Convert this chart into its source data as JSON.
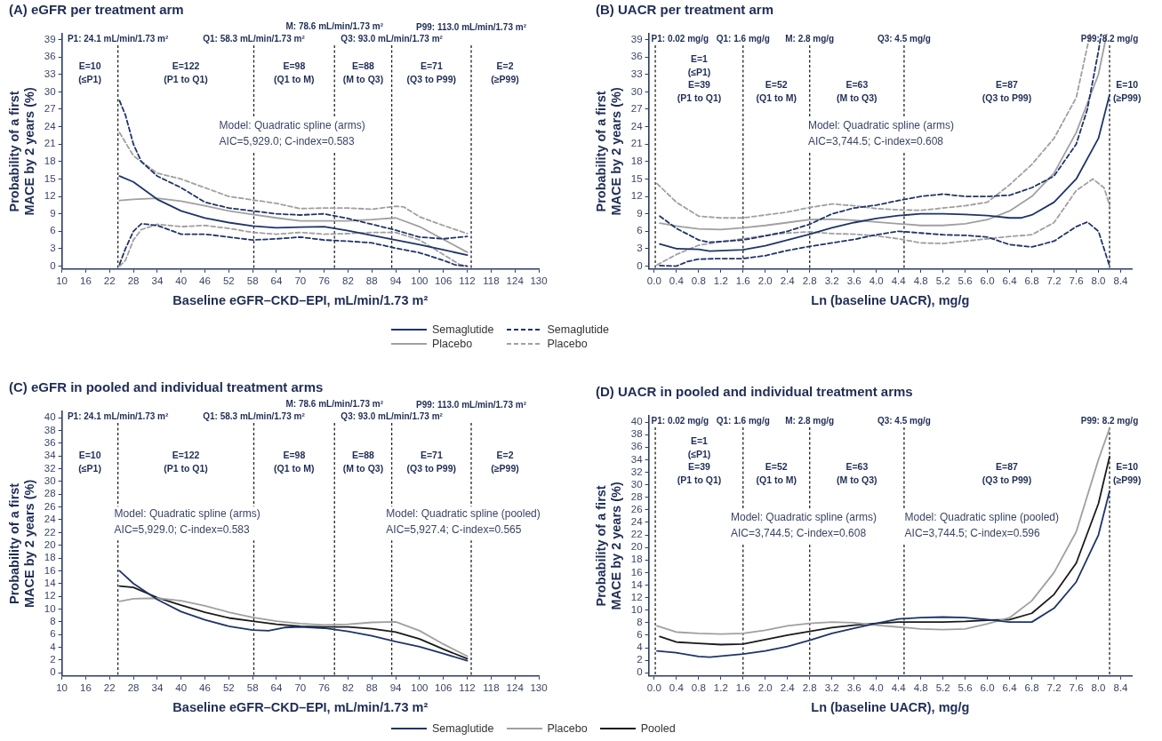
{
  "chart_data": [
    {
      "type": "line",
      "title": "(A) eGFR per treatment arm",
      "xlabel": "Baseline eGFR–CKD–EPI, mL/min/1.73 m²",
      "ylabel": "Probability of a first MACE by 2 years (%)",
      "xlim": [
        10,
        130
      ],
      "xticks": [
        10,
        16,
        22,
        28,
        34,
        40,
        46,
        52,
        58,
        64,
        70,
        76,
        82,
        88,
        94,
        100,
        106,
        112,
        118,
        124,
        130
      ],
      "ylim": [
        -0.5,
        40
      ],
      "yticks": [
        0,
        3,
        6,
        9,
        12,
        15,
        18,
        21,
        24,
        27,
        30,
        33,
        36,
        39
      ],
      "grid": false,
      "legend": "bottom",
      "series": [
        {
          "name": "Semaglutide",
          "color": "#1f3469",
          "line_style": "solid",
          "x": [
            24.5,
            28,
            34,
            40,
            46,
            52,
            58,
            64,
            70,
            76,
            82,
            88,
            94,
            100,
            106,
            112
          ],
          "values": [
            15.5,
            14.5,
            11.5,
            9.5,
            8.3,
            7.5,
            6.9,
            6.6,
            6.7,
            6.8,
            6.1,
            5.3,
            4.5,
            3.7,
            2.8,
            1.9
          ]
        },
        {
          "name": "Semaglutide",
          "color": "#1f3469",
          "line_style": "dashed",
          "x": [
            24.5,
            26,
            28,
            30,
            34,
            40,
            46,
            52,
            58,
            64,
            70,
            76,
            82,
            88,
            94,
            100,
            106,
            112
          ],
          "values": [
            28.5,
            26,
            21,
            18,
            15.5,
            13.5,
            11,
            10,
            9.5,
            9,
            8.8,
            9,
            8.2,
            7.2,
            6.2,
            5,
            4.7,
            5.1
          ]
        },
        {
          "name": "Semaglutide",
          "color": "#1f3469",
          "line_style": "dashed",
          "x": [
            24.5,
            26,
            28,
            30,
            34,
            40,
            46,
            52,
            58,
            64,
            70,
            76,
            82,
            88,
            94,
            100,
            106,
            109,
            112
          ],
          "values": [
            0.3,
            3,
            6,
            7.3,
            7,
            5.5,
            5.5,
            5,
            4.5,
            4.7,
            5,
            4.5,
            4.3,
            4,
            3.1,
            2.3,
            1,
            0.2,
            0
          ]
        },
        {
          "name": "Placebo",
          "color": "#a0a0a0",
          "line_style": "solid",
          "x": [
            24.5,
            28,
            34,
            40,
            46,
            52,
            58,
            64,
            70,
            76,
            82,
            88,
            94,
            100,
            106,
            112
          ],
          "values": [
            11.3,
            11.5,
            11.7,
            11.2,
            10.4,
            9.5,
            8.9,
            8.3,
            7.8,
            7.8,
            7.8,
            8,
            8.3,
            6.8,
            4.6,
            2.4
          ]
        },
        {
          "name": "Placebo",
          "color": "#a0a0a0",
          "line_style": "dashed",
          "x": [
            24.5,
            28,
            34,
            40,
            46,
            52,
            58,
            64,
            70,
            76,
            82,
            88,
            94,
            96,
            100,
            106,
            112
          ],
          "values": [
            23,
            19,
            16,
            15,
            13.5,
            12,
            11.4,
            10.8,
            9.9,
            10,
            10,
            9.8,
            10.3,
            10.2,
            8.5,
            7,
            5.6
          ]
        },
        {
          "name": "Placebo",
          "color": "#a0a0a0",
          "line_style": "dashed",
          "x": [
            24.5,
            26,
            28,
            30,
            34,
            40,
            46,
            52,
            58,
            64,
            70,
            76,
            82,
            88,
            94,
            100,
            106,
            110,
            112
          ],
          "values": [
            0,
            1,
            4.5,
            6.3,
            7.2,
            6.8,
            7,
            6.5,
            5.8,
            5.5,
            5.8,
            5.5,
            5.6,
            5.8,
            5.8,
            4.5,
            2,
            0.3,
            0
          ]
        }
      ],
      "ref_lines": [
        {
          "axis": "x",
          "value": 24.1,
          "label": "P1: 24.1 mL/min/1.73 m²",
          "line_style": "dashed"
        },
        {
          "axis": "x",
          "value": 58.3,
          "label": "Q1: 58.3 mL/min/1.73 m²",
          "line_style": "dashed"
        },
        {
          "axis": "x",
          "value": 78.6,
          "label": "M: 78.6 mL/min/1.73 m²",
          "line_style": "dashed"
        },
        {
          "axis": "x",
          "value": 93.0,
          "label": "Q3: 93.0 mL/min/1.73 m²",
          "line_style": "dashed"
        },
        {
          "axis": "x",
          "value": 113.0,
          "label": "P99: 113.0 mL/min/1.73 m²",
          "line_style": "dashed"
        }
      ],
      "annotations": [
        "E=10\n(≤P1)",
        "E=122\n(P1 to Q1)",
        "E=98\n(Q1 to M)",
        "E=88\n(M to Q3)",
        "E=71\n(Q3 to P99)",
        "E=2\n(≥P99)",
        "Model: Quadratic spline (arms)\nAIC=5,929.0; C-index=0.583"
      ]
    },
    {
      "type": "line",
      "title": "(B) UACR per treatment arm",
      "xlabel": "Ln (baseline UACR), mg/g",
      "ylabel": "Probability of a first MACE by 2 years (%)",
      "xlim": [
        -0.1,
        8.6
      ],
      "xticks": [
        {
          "value": 0,
          "label": "0.0"
        },
        0.4,
        0.8,
        1.2,
        1.6,
        {
          "value": 2,
          "label": "2.0"
        },
        2.4,
        2.8,
        3.2,
        3.6,
        {
          "value": 4,
          "label": "4.0"
        },
        4.4,
        4.8,
        5.2,
        5.6,
        {
          "value": 6,
          "label": "6.0"
        },
        6.4,
        6.8,
        7.2,
        7.6,
        {
          "value": 8,
          "label": "8.0"
        },
        8.4
      ],
      "ylim": [
        -0.5,
        40
      ],
      "yticks": [
        0,
        3,
        6,
        9,
        12,
        15,
        18,
        21,
        24,
        27,
        30,
        33,
        36,
        39
      ],
      "grid": false,
      "series": [
        {
          "color": "#1f3469",
          "line_style": "solid",
          "x": [
            0.1,
            0.4,
            0.8,
            1.0,
            1.6,
            2.0,
            2.4,
            2.8,
            3.2,
            3.6,
            4.0,
            4.4,
            4.8,
            5.2,
            5.6,
            6.0,
            6.4,
            6.6,
            6.8,
            7.2,
            7.6,
            8.0,
            8.2
          ],
          "values": [
            3.8,
            3.0,
            2.9,
            2.6,
            2.8,
            3.5,
            4.5,
            5.5,
            6.6,
            7.5,
            8.2,
            8.7,
            9.0,
            9.0,
            8.9,
            8.7,
            8.3,
            8.3,
            8.8,
            11,
            15,
            22,
            29.5
          ]
        },
        {
          "color": "#1f3469",
          "line_style": "dashed",
          "x": [
            0.1,
            0.4,
            0.8,
            1.0,
            1.6,
            2.0,
            2.4,
            2.8,
            3.2,
            3.6,
            4.0,
            4.4,
            4.8,
            5.2,
            5.6,
            6.0,
            6.4,
            6.8,
            7.2,
            7.6,
            7.8,
            8.0,
            8.05
          ],
          "values": [
            8.6,
            6.5,
            4.5,
            4.1,
            4.5,
            5.2,
            6.0,
            7.2,
            9.0,
            10.0,
            10.5,
            11.3,
            12.0,
            12.4,
            12.0,
            12.0,
            12.2,
            13.5,
            15.5,
            21,
            27,
            37,
            40
          ]
        },
        {
          "color": "#1f3469",
          "line_style": "dashed",
          "x": [
            0.1,
            0.4,
            0.6,
            0.8,
            1.2,
            1.6,
            2.0,
            2.4,
            2.8,
            3.2,
            3.6,
            4.0,
            4.4,
            4.8,
            5.2,
            5.6,
            6.0,
            6.4,
            6.8,
            7.2,
            7.6,
            7.8,
            8.0,
            8.2
          ],
          "values": [
            0.1,
            0,
            0.8,
            1.2,
            1.3,
            1.3,
            1.8,
            2.7,
            3.4,
            4.0,
            4.6,
            5.4,
            6.0,
            5.7,
            5.4,
            5.3,
            5.0,
            3.7,
            3.3,
            4.3,
            6.8,
            7.6,
            6.0,
            0
          ]
        },
        {
          "color": "#a0a0a0",
          "line_style": "solid",
          "x": [
            0.1,
            0.4,
            0.8,
            1.2,
            1.6,
            2.0,
            2.4,
            2.8,
            3.2,
            3.6,
            4.0,
            4.4,
            4.8,
            5.2,
            5.6,
            6.0,
            6.4,
            6.8,
            7.2,
            7.6,
            8.0,
            8.15
          ],
          "values": [
            7.4,
            6.9,
            6.4,
            6.3,
            6.6,
            7.0,
            7.5,
            8.0,
            8.1,
            7.9,
            7.6,
            7.3,
            7.0,
            7.0,
            7.3,
            8.0,
            9.5,
            12,
            16,
            23,
            33,
            40
          ]
        },
        {
          "color": "#a0a0a0",
          "line_style": "dashed",
          "x": [
            0.05,
            0.4,
            0.8,
            1.2,
            1.6,
            2.0,
            2.4,
            2.8,
            3.2,
            3.6,
            4.0,
            4.4,
            4.8,
            5.2,
            5.6,
            6.0,
            6.4,
            6.8,
            7.2,
            7.6,
            7.85
          ],
          "values": [
            14.2,
            11,
            8.6,
            8.3,
            8.3,
            8.8,
            9.3,
            10.1,
            10.7,
            10.4,
            9.9,
            9.7,
            9.6,
            10.0,
            10.4,
            11,
            14,
            17.5,
            22,
            29,
            40
          ]
        },
        {
          "color": "#a0a0a0",
          "line_style": "dashed",
          "x": [
            0.05,
            0.4,
            0.8,
            1.2,
            1.6,
            2.0,
            2.4,
            2.8,
            3.2,
            3.6,
            4.0,
            4.4,
            4.8,
            5.2,
            5.6,
            6.0,
            6.4,
            6.8,
            7.2,
            7.6,
            7.9,
            8.1,
            8.2
          ],
          "values": [
            0.2,
            2.0,
            3.6,
            4.2,
            4.7,
            5.3,
            5.7,
            5.9,
            5.6,
            5.5,
            5.2,
            4.7,
            4.0,
            3.9,
            4.3,
            4.7,
            5.1,
            5.4,
            7.5,
            13,
            15,
            13.5,
            10.5
          ]
        }
      ],
      "ref_lines": [
        {
          "axis": "x",
          "value": 0.02,
          "label": "P1: 0.02 mg/g",
          "line_style": "dashed"
        },
        {
          "axis": "x",
          "value": 1.6,
          "label": "Q1: 1.6 mg/g",
          "line_style": "dashed"
        },
        {
          "axis": "x",
          "value": 2.8,
          "label": "M: 2.8 mg/g",
          "line_style": "dashed"
        },
        {
          "axis": "x",
          "value": 4.5,
          "label": "Q3: 4.5 mg/g",
          "line_style": "dashed"
        },
        {
          "axis": "x",
          "value": 8.2,
          "label": "P99: 8.2 mg/g",
          "line_style": "dashed"
        }
      ],
      "annotations": [
        "E=1\n(≤P1)",
        "E=39\n(P1 to Q1)",
        "E=52\n(Q1 to M)",
        "E=63\n(M to Q3)",
        "E=87\n(Q3 to P99)",
        "E=10\n(≥P99)",
        "Model: Quadratic spline (arms)\nAIC=3,744.5; C-index=0.608"
      ]
    },
    {
      "type": "line",
      "title": "(C) eGFR in pooled and individual treatment arms",
      "xlabel": "Baseline eGFR–CKD–EPI, mL/min/1.73 m²",
      "ylabel": "Probability of a first MACE by 2 years (%)",
      "xlim": [
        10,
        130
      ],
      "xticks": [
        10,
        16,
        22,
        28,
        34,
        40,
        46,
        52,
        58,
        64,
        70,
        76,
        82,
        88,
        94,
        100,
        106,
        112,
        118,
        124,
        130
      ],
      "ylim": [
        -0.5,
        41
      ],
      "yticks": [
        0,
        2,
        4,
        6,
        8,
        10,
        12,
        14,
        16,
        18,
        20,
        22,
        24,
        26,
        28,
        30,
        32,
        34,
        36,
        38,
        40
      ],
      "grid": false,
      "legend": "bottom",
      "series": [
        {
          "name": "Semaglutide",
          "color": "#1f3469",
          "line_style": "solid",
          "x": [
            24.5,
            28,
            34,
            40,
            46,
            52,
            58,
            62,
            66,
            70,
            76,
            82,
            88,
            94,
            100,
            106,
            112
          ],
          "values": [
            16.0,
            14,
            11.5,
            9.6,
            8.3,
            7.3,
            6.7,
            6.6,
            7.1,
            7.2,
            7.0,
            6.5,
            5.8,
            4.9,
            4.1,
            3.0,
            1.9
          ]
        },
        {
          "name": "Placebo",
          "color": "#a0a0a0",
          "line_style": "solid",
          "x": [
            24.5,
            28,
            34,
            40,
            46,
            52,
            58,
            64,
            70,
            76,
            82,
            88,
            94,
            100,
            106,
            112
          ],
          "values": [
            11.2,
            11.6,
            11.7,
            11.3,
            10.5,
            9.5,
            8.7,
            8.1,
            7.7,
            7.5,
            7.6,
            7.9,
            8.0,
            6.6,
            4.5,
            2.6
          ]
        },
        {
          "name": "Pooled",
          "color": "#1a1a1a",
          "line_style": "solid",
          "x": [
            24.5,
            28,
            34,
            40,
            46,
            52,
            58,
            64,
            70,
            76,
            82,
            88,
            94,
            100,
            106,
            112
          ],
          "values": [
            13.6,
            13.4,
            11.8,
            10.6,
            9.5,
            8.6,
            8.1,
            7.6,
            7.3,
            7.2,
            7.2,
            6.9,
            6.4,
            5.3,
            3.7,
            2.2
          ]
        }
      ],
      "ref_lines": [
        {
          "axis": "x",
          "value": 24.1,
          "label": "P1: 24.1 mL/min/1.73 m²",
          "line_style": "dashed"
        },
        {
          "axis": "x",
          "value": 58.3,
          "label": "Q1: 58.3 mL/min/1.73 m²",
          "line_style": "dashed"
        },
        {
          "axis": "x",
          "value": 78.6,
          "label": "M: 78.6 mL/min/1.73 m²",
          "line_style": "dashed"
        },
        {
          "axis": "x",
          "value": 93.0,
          "label": "Q3: 93.0 mL/min/1.73 m²",
          "line_style": "dashed"
        },
        {
          "axis": "x",
          "value": 113.0,
          "label": "P99: 113.0 mL/min/1.73 m²",
          "line_style": "dashed"
        }
      ],
      "annotations": [
        "E=10\n(≤P1)",
        "E=122\n(P1 to Q1)",
        "E=98\n(Q1 to M)",
        "E=88\n(M to Q3)",
        "E=71\n(Q3 to P99)",
        "E=2\n(≥P99)",
        "Model: Quadratic spline (arms)\nAIC=5,929.0; C-index=0.583",
        "Model: Quadratic spline (pooled)\nAIC=5,927.4; C-index=0.565"
      ]
    },
    {
      "type": "line",
      "title": "(D) UACR in pooled and individual treatment arms",
      "xlabel": "Ln (baseline UACR), mg/g",
      "ylabel": "Probability of a first MACE by 2 years (%)",
      "xlim": [
        -0.1,
        8.6
      ],
      "xticks": [
        {
          "value": 0,
          "label": "0.0"
        },
        0.4,
        0.8,
        1.2,
        1.6,
        {
          "value": 2,
          "label": "2.0"
        },
        2.4,
        2.8,
        3.2,
        3.6,
        {
          "value": 4,
          "label": "4.0"
        },
        4.4,
        4.8,
        5.2,
        5.6,
        {
          "value": 6,
          "label": "6.0"
        },
        6.4,
        6.8,
        7.2,
        7.6,
        {
          "value": 8,
          "label": "8.0"
        },
        8.4
      ],
      "ylim": [
        -0.5,
        41
      ],
      "yticks": [
        0,
        2,
        4,
        6,
        8,
        10,
        12,
        14,
        16,
        18,
        20,
        22,
        24,
        26,
        28,
        30,
        32,
        34,
        36,
        38,
        40
      ],
      "grid": false,
      "series": [
        {
          "color": "#1f3469",
          "line_style": "solid",
          "x": [
            0.05,
            0.4,
            0.8,
            1.0,
            1.6,
            2.0,
            2.4,
            2.8,
            3.2,
            3.6,
            4.0,
            4.4,
            4.8,
            5.2,
            5.6,
            6.0,
            6.4,
            6.8,
            7.2,
            7.6,
            8.0,
            8.2
          ],
          "values": [
            3.5,
            3.2,
            2.6,
            2.5,
            3.0,
            3.5,
            4.2,
            5.2,
            6.3,
            7.1,
            7.9,
            8.6,
            8.8,
            8.9,
            8.8,
            8.5,
            8.1,
            8.1,
            10.3,
            14.5,
            22,
            29
          ]
        },
        {
          "color": "#a0a0a0",
          "line_style": "solid",
          "x": [
            0.05,
            0.4,
            0.8,
            1.2,
            1.6,
            2.0,
            2.4,
            2.8,
            3.2,
            3.6,
            4.0,
            4.4,
            4.8,
            5.2,
            5.6,
            6.0,
            6.4,
            6.8,
            7.2,
            7.6,
            8.0,
            8.2
          ],
          "values": [
            7.5,
            6.5,
            6.3,
            6.2,
            6.3,
            6.8,
            7.5,
            7.9,
            8.1,
            8.0,
            7.6,
            7.3,
            7.0,
            6.9,
            7.0,
            7.8,
            8.8,
            11.5,
            16,
            22.5,
            34,
            39
          ]
        },
        {
          "color": "#1a1a1a",
          "line_style": "solid",
          "x": [
            0.1,
            0.4,
            0.8,
            1.2,
            1.6,
            2.0,
            2.4,
            2.8,
            3.2,
            3.6,
            4.0,
            4.4,
            4.8,
            5.2,
            5.6,
            6.0,
            6.4,
            6.8,
            7.2,
            7.6,
            8.0,
            8.2
          ],
          "values": [
            5.8,
            4.9,
            4.7,
            4.5,
            4.6,
            5.3,
            6.0,
            6.6,
            7.2,
            7.6,
            7.9,
            8.1,
            8.1,
            8.1,
            8.2,
            8.4,
            8.5,
            9.5,
            12.5,
            17.5,
            27,
            34.5
          ]
        }
      ],
      "ref_lines": [
        {
          "axis": "x",
          "value": 0.02,
          "label": "P1: 0.02 mg/g",
          "line_style": "dashed"
        },
        {
          "axis": "x",
          "value": 1.6,
          "label": "Q1: 1.6 mg/g",
          "line_style": "dashed"
        },
        {
          "axis": "x",
          "value": 2.8,
          "label": "M: 2.8 mg/g",
          "line_style": "dashed"
        },
        {
          "axis": "x",
          "value": 4.5,
          "label": "Q3: 4.5 mg/g",
          "line_style": "dashed"
        },
        {
          "axis": "x",
          "value": 8.2,
          "label": "P99: 8.2 mg/g",
          "line_style": "dashed"
        }
      ],
      "annotations": [
        "E=1\n(≤P1)",
        "E=39\n(P1 to Q1)",
        "E=52\n(Q1 to M)",
        "E=63\n(M to Q3)",
        "E=87\n(Q3 to P99)",
        "E=10\n(≥P99)",
        "Model: Quadratic spline (arms)\nAIC=3,744.5; C-index=0.608",
        "Model: Quadratic spline (pooled)\nAIC=3,744.5; C-index=0.596"
      ]
    }
  ]
}
